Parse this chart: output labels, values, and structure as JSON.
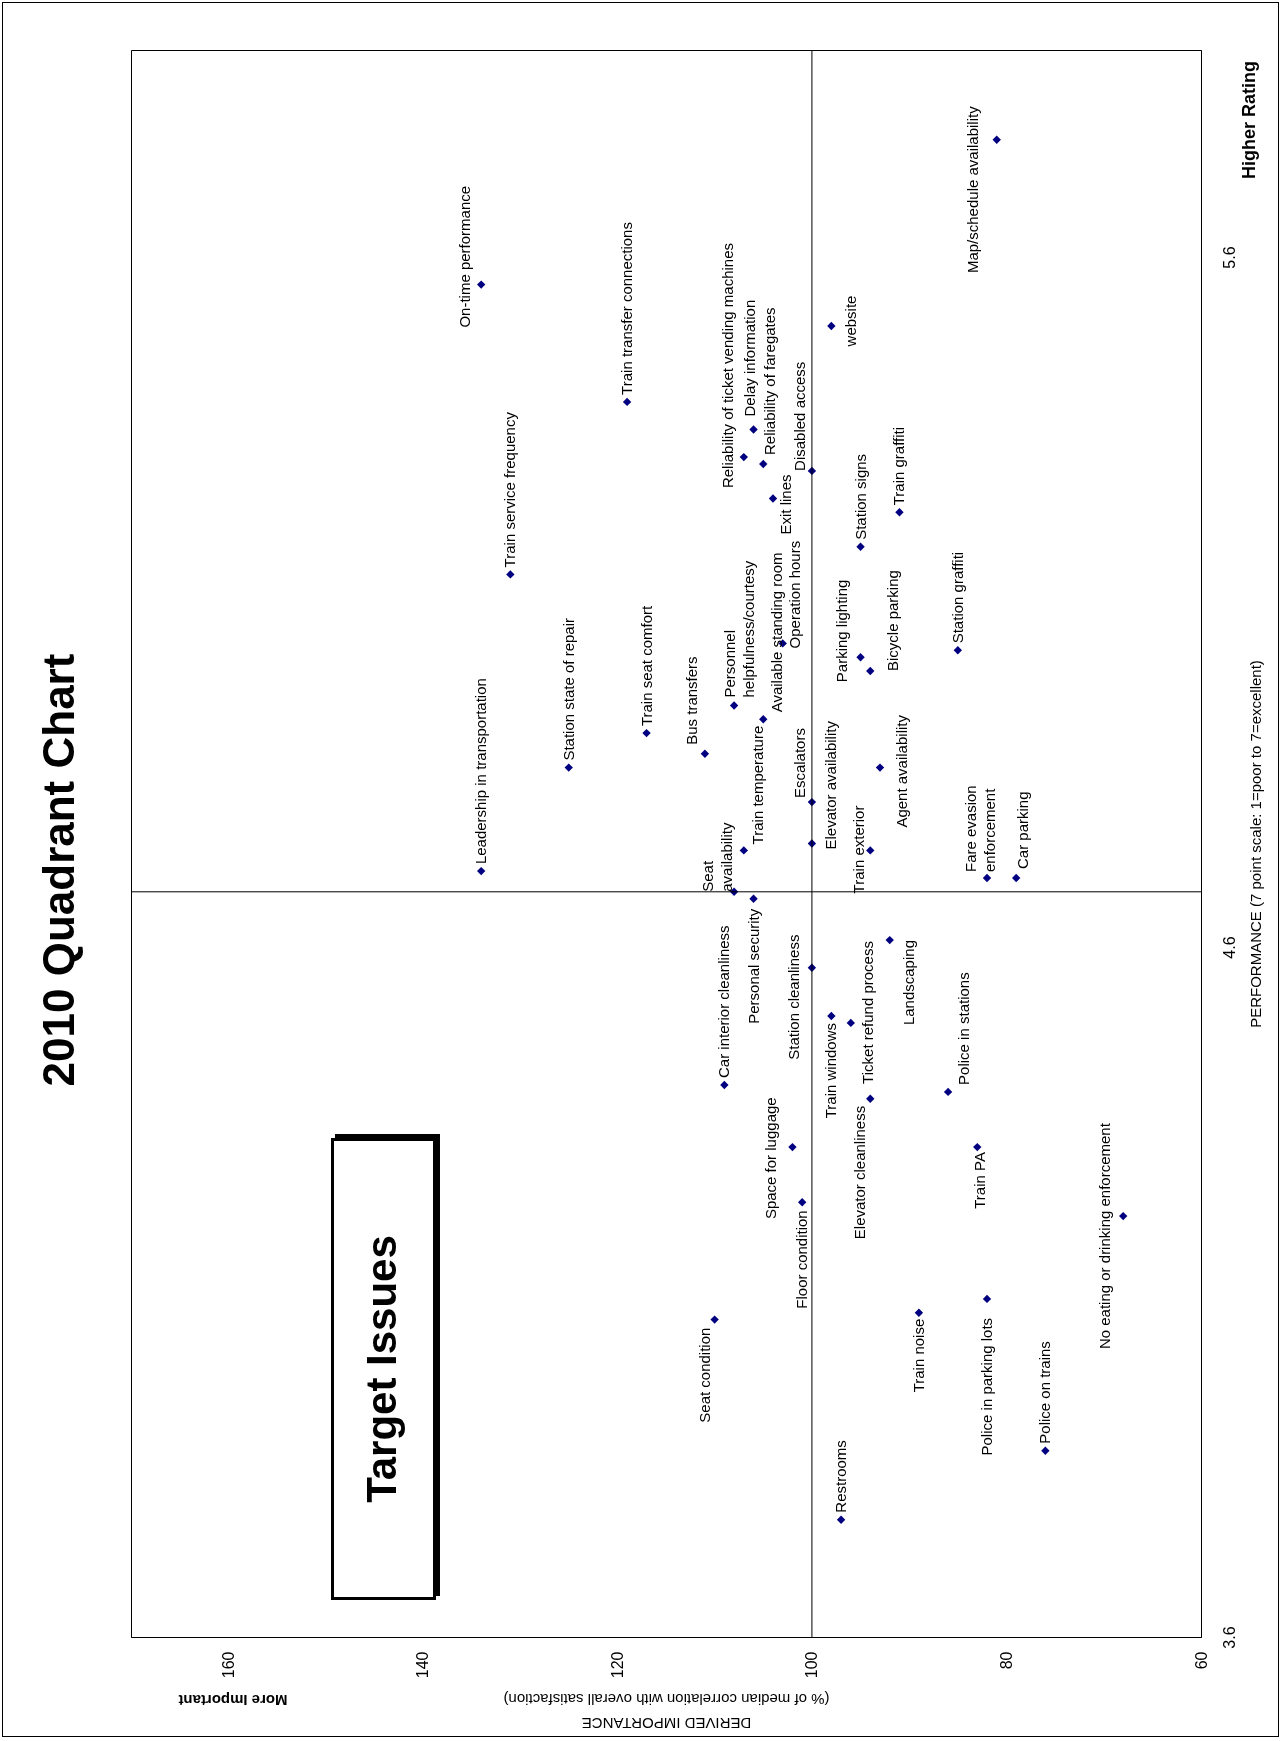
{
  "chart_data": {
    "type": "scatter",
    "title": "2010 Quadrant Chart",
    "ylabel": "PERFORMANCE (7 point scale:  1=poor to 7=excellent)",
    "xlabel": "DERIVED IMPORTANCE\n(% of median correlation with overall satisfaction)",
    "ylim": [
      3.6,
      5.9
    ],
    "yticks": [
      3.6,
      4.6,
      5.6
    ],
    "xlim": [
      170,
      60
    ],
    "xticks": [
      160,
      140,
      120,
      100,
      80,
      60
    ],
    "grid": false,
    "marker": "diamond",
    "ref_lines": [
      {
        "axis": "x",
        "value": 100
      },
      {
        "axis": "y",
        "value": 4.68
      }
    ],
    "series": [
      {
        "color": "#000080",
        "x": [
          134,
          81,
          119,
          131,
          98,
          107,
          106,
          105,
          104,
          100,
          91,
          95,
          85,
          94,
          95,
          103,
          108,
          105,
          111,
          117,
          125,
          134,
          100,
          93,
          100,
          107,
          94,
          108,
          106,
          82,
          79,
          92,
          100,
          98,
          96,
          109,
          86,
          94,
          102,
          83,
          101,
          68,
          110,
          89,
          82,
          76,
          97
        ],
        "values": [
          5.56,
          5.77,
          5.39,
          5.14,
          5.5,
          5.31,
          5.35,
          5.3,
          5.25,
          5.29,
          5.23,
          5.18,
          5.03,
          5.0,
          5.02,
          5.04,
          4.95,
          4.93,
          4.88,
          4.91,
          4.86,
          4.71,
          4.81,
          4.86,
          4.75,
          4.74,
          4.74,
          4.68,
          4.67,
          4.7,
          4.7,
          4.61,
          4.57,
          4.5,
          4.49,
          4.4,
          4.39,
          4.38,
          4.31,
          4.31,
          4.23,
          4.21,
          4.06,
          4.07,
          4.09,
          3.87,
          3.77
        ]
      }
    ],
    "annotations": [
      "More Important",
      "Higher Rating",
      "Target Issues",
      {
        "text": "On-time performance",
        "y": 5.56,
        "x": 134
      },
      {
        "text": "Map/schedule availability",
        "y": 5.77,
        "x": 81
      },
      {
        "text": "Train transfer connections",
        "y": 5.39,
        "x": 119
      },
      {
        "text": "Train service frequency",
        "y": 5.14,
        "x": 131
      },
      {
        "text": "website",
        "y": 5.5,
        "x": 98
      },
      {
        "text": "Reliability of ticket vending machines",
        "y": 5.31,
        "x": 107
      },
      {
        "text": "Delay information",
        "y": 5.35,
        "x": 106
      },
      {
        "text": "Reliability of faregates",
        "y": 5.3,
        "x": 105
      },
      {
        "text": "Exit lines",
        "y": 5.25,
        "x": 104
      },
      {
        "text": "Disabled access",
        "y": 5.29,
        "x": 100
      },
      {
        "text": "Train graffiti",
        "y": 5.23,
        "x": 91
      },
      {
        "text": "Station signs",
        "y": 5.18,
        "x": 95
      },
      {
        "text": "Station graffiti",
        "y": 5.03,
        "x": 85
      },
      {
        "text": "Bicycle parking",
        "y": 5.0,
        "x": 94
      },
      {
        "text": "Parking lighting",
        "y": 5.02,
        "x": 95
      },
      {
        "text": "Operation hours",
        "y": 5.04,
        "x": 103
      },
      {
        "text": "Personnel helpfulness/courtesy",
        "y": 4.95,
        "x": 108
      },
      {
        "text": "Available standing room",
        "y": 4.93,
        "x": 105
      },
      {
        "text": "Bus transfers",
        "y": 4.88,
        "x": 111
      },
      {
        "text": "Train seat comfort",
        "y": 4.91,
        "x": 117
      },
      {
        "text": "Station state of repair",
        "y": 4.86,
        "x": 125
      },
      {
        "text": "Leadership in transportation",
        "y": 4.71,
        "x": 134
      },
      {
        "text": "Escalators",
        "y": 4.81,
        "x": 100
      },
      {
        "text": "Agent availability",
        "y": 4.86,
        "x": 93
      },
      {
        "text": "Elevator availability",
        "y": 4.75,
        "x": 100
      },
      {
        "text": "Train temperature",
        "y": 4.74,
        "x": 107
      },
      {
        "text": "Train exterior",
        "y": 4.74,
        "x": 94
      },
      {
        "text": "Seat availability",
        "y": 4.68,
        "x": 108
      },
      {
        "text": "Personal security",
        "y": 4.67,
        "x": 106
      },
      {
        "text": "Fare evasion enforcement",
        "y": 4.7,
        "x": 82
      },
      {
        "text": "Car parking",
        "y": 4.7,
        "x": 79
      },
      {
        "text": "Landscaping",
        "y": 4.61,
        "x": 92
      },
      {
        "text": "Station cleanliness",
        "y": 4.57,
        "x": 100
      },
      {
        "text": "Train windows",
        "y": 4.5,
        "x": 98
      },
      {
        "text": "Ticket refund process",
        "y": 4.49,
        "x": 96
      },
      {
        "text": "Car interior cleanliness",
        "y": 4.4,
        "x": 109
      },
      {
        "text": "Police in stations",
        "y": 4.39,
        "x": 86
      },
      {
        "text": "Elevator cleanliness",
        "y": 4.38,
        "x": 94
      },
      {
        "text": "Space for luggage",
        "y": 4.31,
        "x": 102
      },
      {
        "text": "Train PA",
        "y": 4.31,
        "x": 83
      },
      {
        "text": "Floor condition",
        "y": 4.23,
        "x": 101
      },
      {
        "text": "No eating or drinking enforcement",
        "y": 4.21,
        "x": 68
      },
      {
        "text": "Seat condition",
        "y": 4.06,
        "x": 110
      },
      {
        "text": "Train noise",
        "y": 4.07,
        "x": 89
      },
      {
        "text": "Police in parking lots",
        "y": 4.09,
        "x": 82
      },
      {
        "text": "Police on trains",
        "y": 3.87,
        "x": 76
      },
      {
        "text": "Restrooms",
        "y": 3.77,
        "x": 97
      }
    ]
  }
}
